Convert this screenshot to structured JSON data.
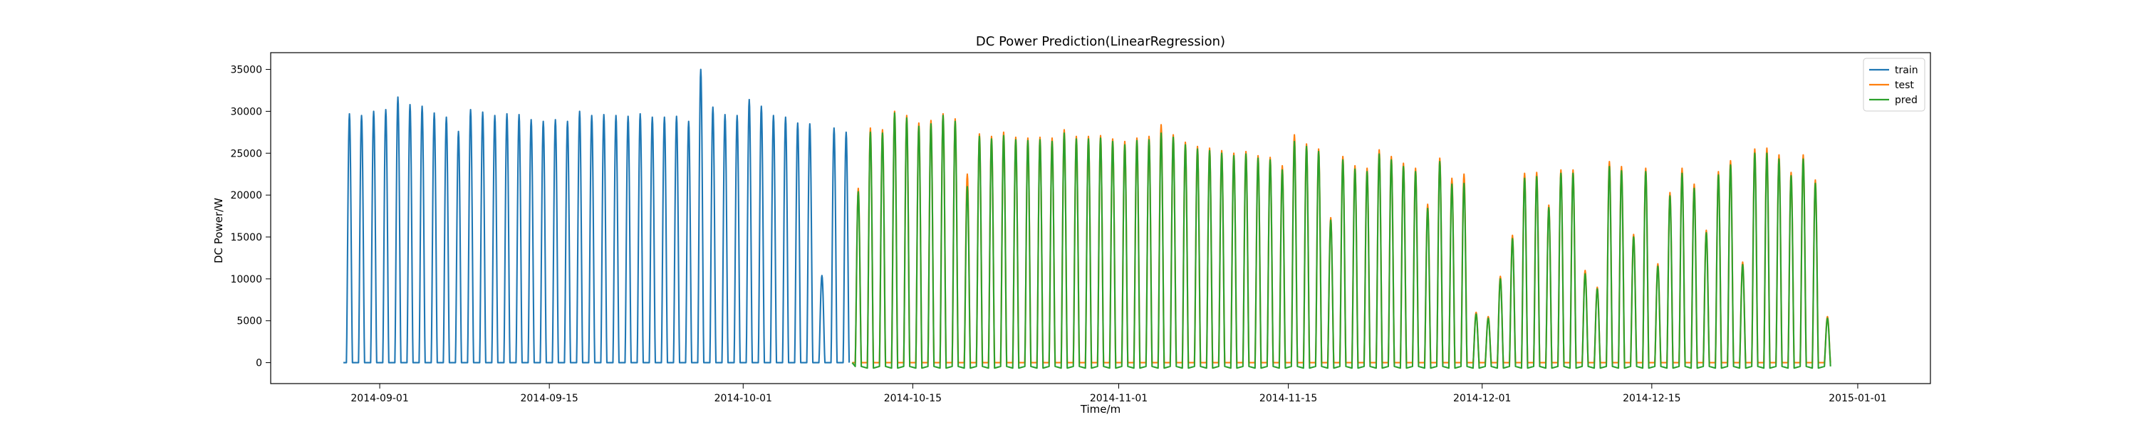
{
  "chart_data": {
    "type": "line",
    "title": "DC Power Prediction(LinearRegression)",
    "xlabel": "Time/m",
    "ylabel": "DC Power/W",
    "x_type": "date",
    "xlim": [
      "2014-08-23",
      "2015-01-07"
    ],
    "ylim": [
      -2500,
      37000
    ],
    "x_ticks": [
      "2014-09-01",
      "2014-09-15",
      "2014-10-01",
      "2014-10-15",
      "2014-11-01",
      "2014-11-15",
      "2014-12-01",
      "2014-12-15",
      "2015-01-01"
    ],
    "y_ticks": [
      0,
      5000,
      10000,
      15000,
      20000,
      25000,
      30000,
      35000
    ],
    "legend_position": "top-right",
    "grid": false,
    "series": [
      {
        "name": "train",
        "color": "#1f77b4",
        "x_start": "2014-08-29",
        "x_end": "2014-10-10",
        "daily_peaks": [
          29700,
          29500,
          30000,
          30200,
          31700,
          30800,
          30600,
          29800,
          29300,
          27600,
          30200,
          29900,
          29500,
          29700,
          29600,
          29000,
          28800,
          29000,
          28800,
          30000,
          29500,
          29600,
          29500,
          29400,
          29700,
          29300,
          29300,
          29400,
          28800,
          35000,
          30500,
          29600,
          29500,
          31400,
          30600,
          29500,
          29300,
          28600,
          28500,
          10400,
          28000,
          27500
        ]
      },
      {
        "name": "test",
        "color": "#ff7f0e",
        "x_start": "2014-10-10",
        "x_end": "2015-01-01",
        "daily_peaks": [
          20800,
          28000,
          27800,
          30000,
          29500,
          28600,
          28900,
          29700,
          29100,
          22500,
          27300,
          27000,
          27500,
          26900,
          26800,
          26900,
          26800,
          27800,
          27000,
          27000,
          27100,
          26700,
          26400,
          26800,
          27000,
          28400,
          27200,
          26300,
          25800,
          25600,
          25300,
          25000,
          25200,
          24700,
          24500,
          23500,
          27200,
          26100,
          25500,
          17300,
          24600,
          23500,
          23200,
          25400,
          24600,
          23800,
          23200,
          18900,
          24400,
          22000,
          22500,
          6000,
          5500,
          10300,
          15200,
          22600,
          22700,
          18800,
          23000,
          23000,
          11000,
          9000,
          24000,
          23400,
          15300,
          23200,
          11800,
          20300,
          23200,
          21300,
          15800,
          22800,
          24100,
          12000,
          25500,
          25600,
          24800,
          22700,
          24800,
          21800,
          5500
        ]
      },
      {
        "name": "pred",
        "color": "#2ca02c",
        "x_start": "2014-10-10",
        "x_end": "2015-01-01",
        "daily_peaks": [
          20400,
          27500,
          27400,
          29800,
          29200,
          28200,
          28500,
          29500,
          28800,
          21000,
          27000,
          26700,
          27100,
          26600,
          26500,
          26600,
          26400,
          27400,
          26700,
          26700,
          26800,
          26400,
          26000,
          26500,
          26600,
          27400,
          26900,
          26000,
          25500,
          25300,
          25000,
          24700,
          24900,
          24400,
          24200,
          23000,
          26400,
          25800,
          25200,
          17000,
          24200,
          23100,
          22800,
          24900,
          24200,
          23400,
          22800,
          18400,
          24000,
          21300,
          21400,
          5800,
          5300,
          10000,
          14800,
          22000,
          22200,
          18500,
          22600,
          22600,
          10600,
          8800,
          23400,
          22900,
          15000,
          22800,
          11500,
          19900,
          22600,
          20800,
          15500,
          22400,
          23600,
          11700,
          25000,
          25000,
          24300,
          22300,
          24300,
          21400,
          5300
        ]
      }
    ]
  }
}
